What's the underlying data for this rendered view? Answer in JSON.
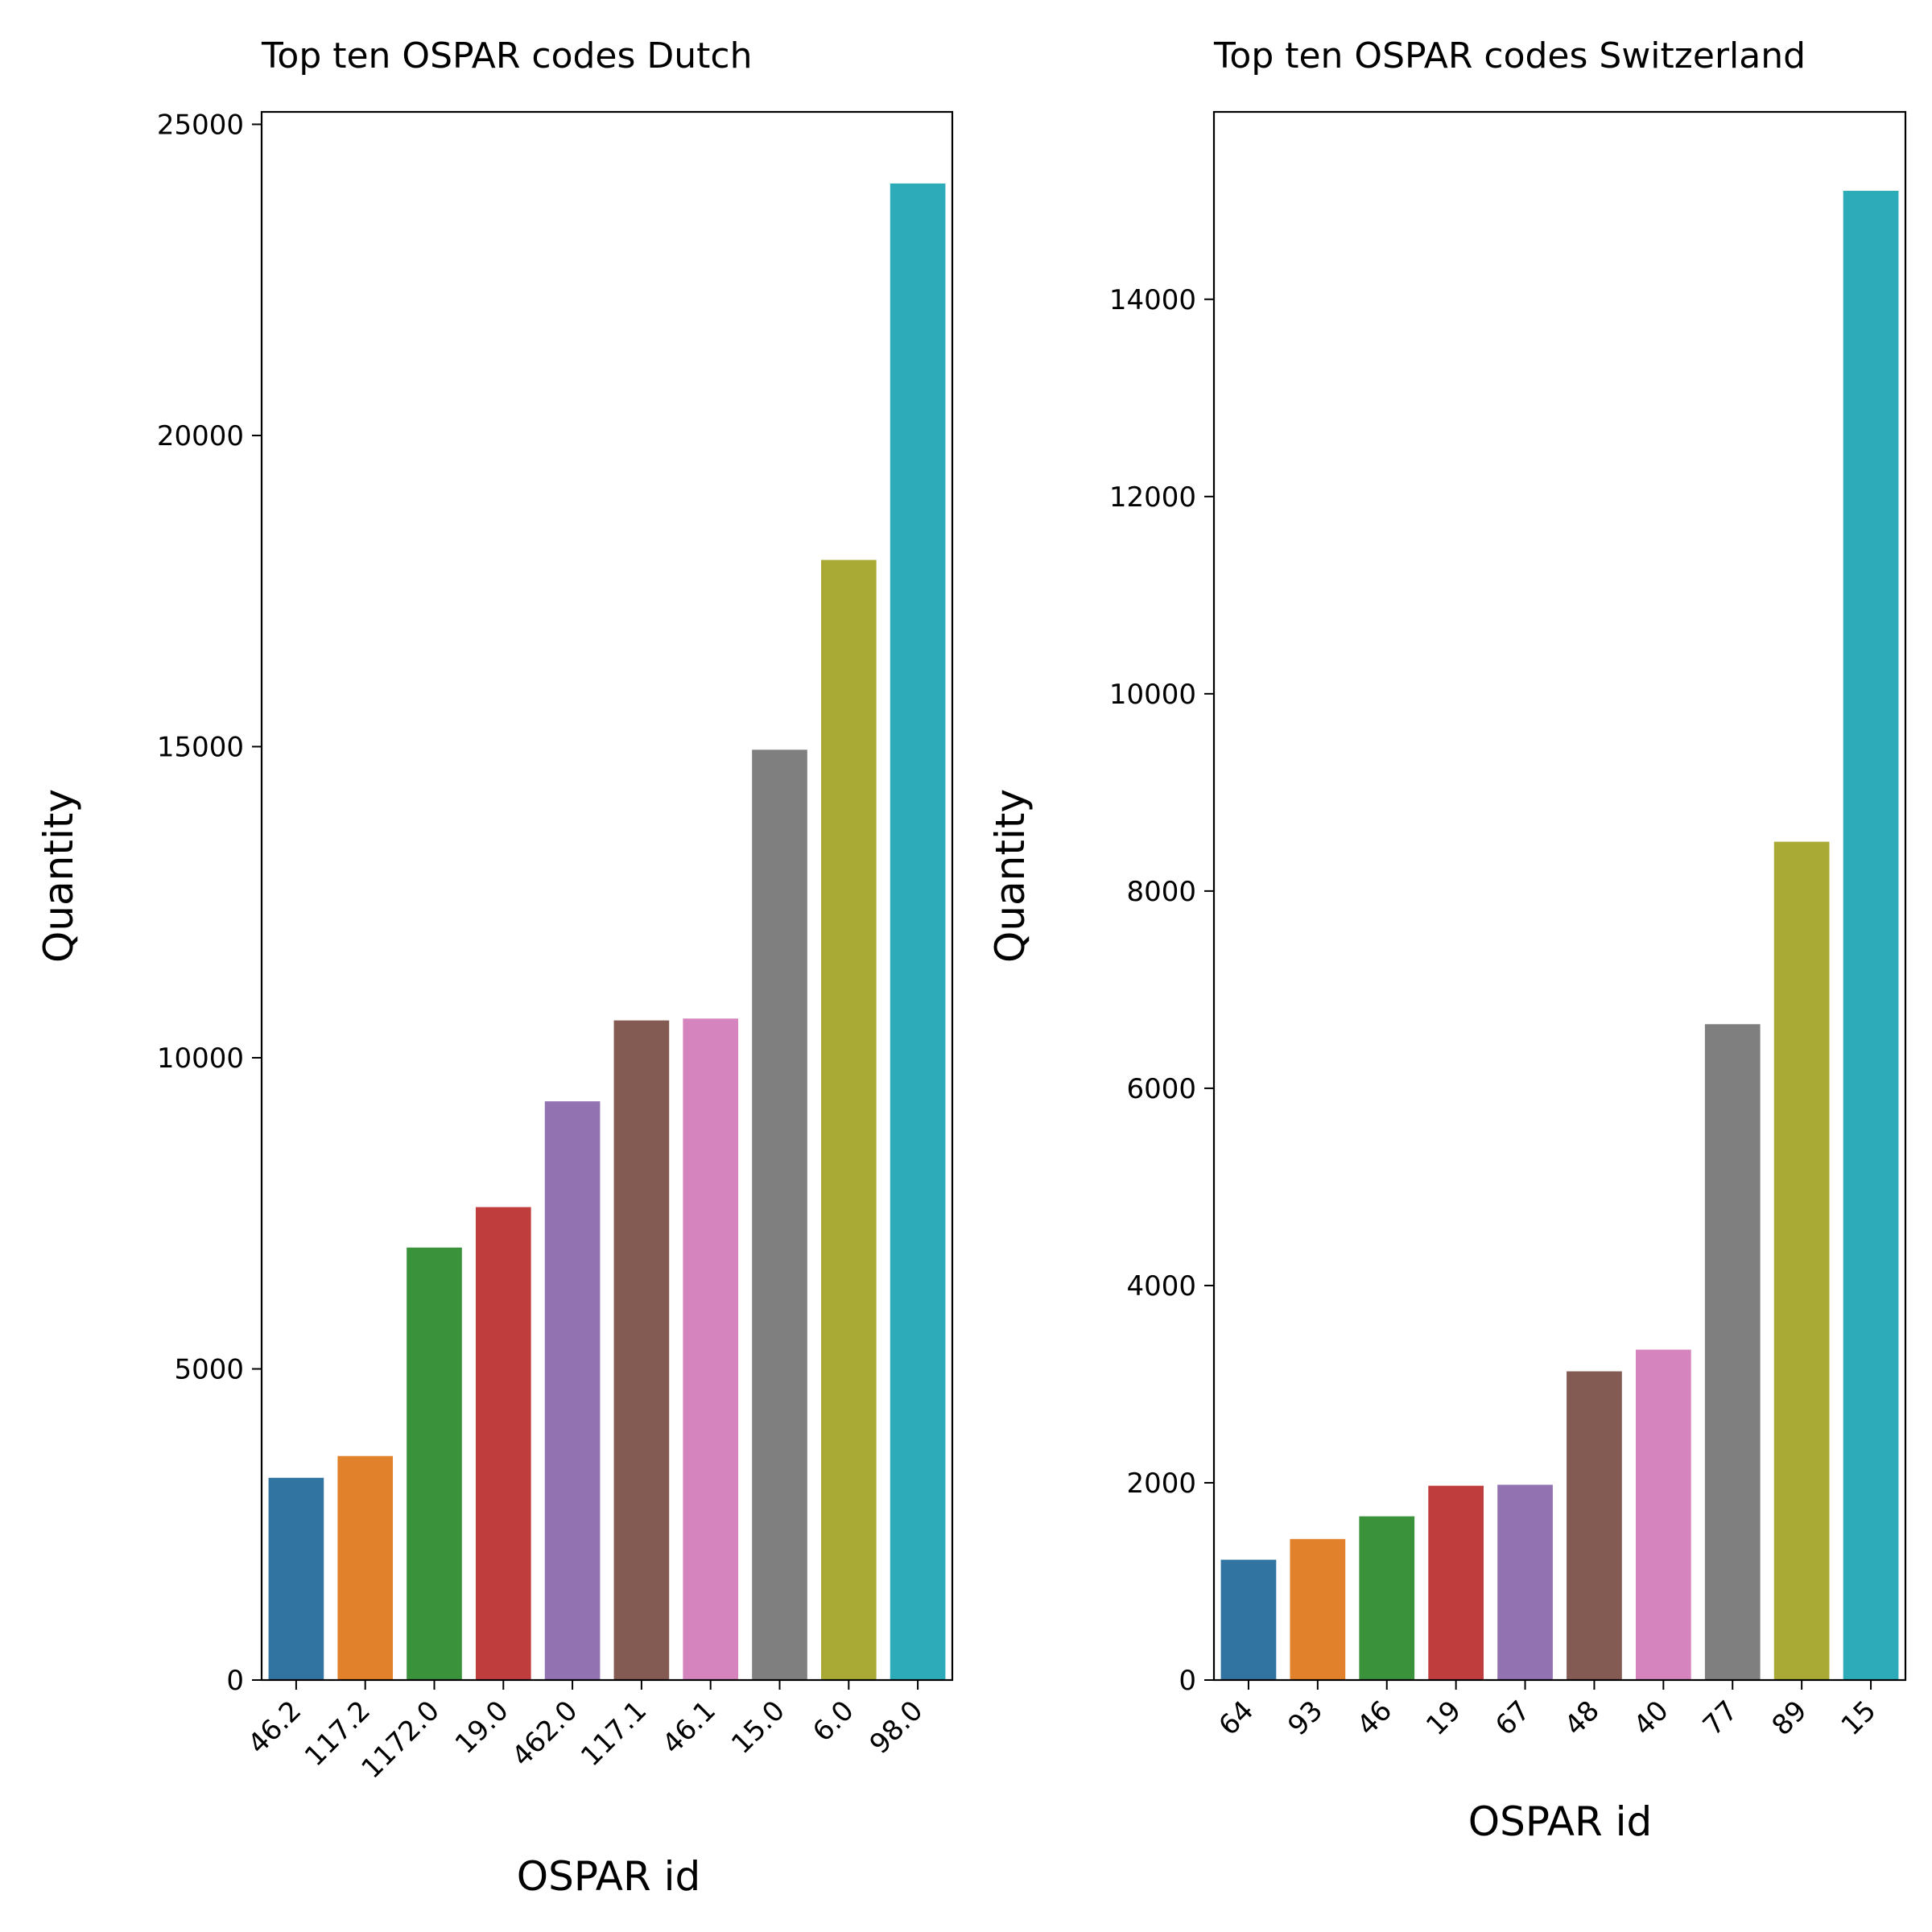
{
  "chart_data": [
    {
      "type": "bar",
      "title": "Top ten OSPAR codes Dutch",
      "xlabel": "OSPAR id",
      "ylabel": "Quantity",
      "categories": [
        "46.2",
        "117.2",
        "1172.0",
        "19.0",
        "462.0",
        "117.1",
        "46.1",
        "15.0",
        "6.0",
        "98.0"
      ],
      "values": [
        3250,
        3600,
        6950,
        7600,
        9300,
        10600,
        10630,
        14950,
        18000,
        24050
      ],
      "ylim": [
        0,
        25200
      ],
      "yticks": [
        0,
        5000,
        10000,
        15000,
        20000,
        25000
      ],
      "colors": [
        "#3274a1",
        "#e1812c",
        "#3a923a",
        "#c03d3e",
        "#9372b2",
        "#845b53",
        "#d684bd",
        "#7f7f7f",
        "#a9aa35",
        "#2eabb8"
      ],
      "grid": false,
      "legend": "none"
    },
    {
      "type": "bar",
      "title": "Top ten OSPAR codes Switzerland",
      "xlabel": "OSPAR id",
      "ylabel": "Quantity",
      "categories": [
        "64",
        "93",
        "46",
        "19",
        "67",
        "48",
        "40",
        "77",
        "89",
        "15"
      ],
      "values": [
        1220,
        1430,
        1660,
        1970,
        1980,
        3130,
        3350,
        6650,
        8500,
        15100
      ],
      "ylim": [
        0,
        15900
      ],
      "yticks": [
        0,
        2000,
        4000,
        6000,
        8000,
        10000,
        12000,
        14000
      ],
      "colors": [
        "#3274a1",
        "#e1812c",
        "#3a923a",
        "#c03d3e",
        "#9372b2",
        "#845b53",
        "#d684bd",
        "#7f7f7f",
        "#a9aa35",
        "#2eabb8"
      ],
      "grid": false,
      "legend": "none"
    }
  ]
}
